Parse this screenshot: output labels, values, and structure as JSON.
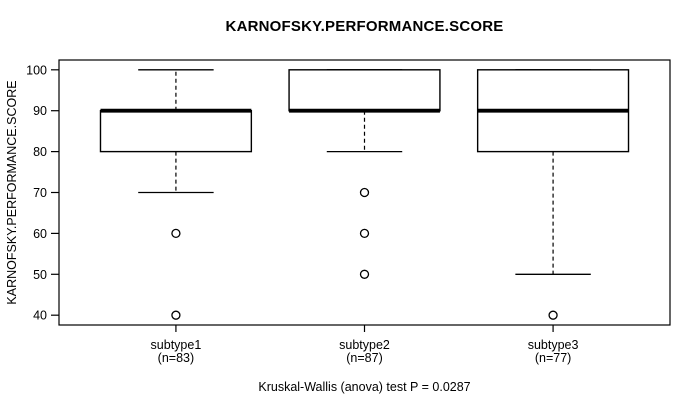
{
  "colors": {
    "foreground": "#000000",
    "background": "#ffffff"
  },
  "chart_data": {
    "type": "boxplot",
    "title": "KARNOFSKY.PERFORMANCE.SCORE",
    "ylabel": "KARNOFSKY.PERFORMANCE.SCORE",
    "xlabel": "",
    "footer": "Kruskal-Wallis (anova) test P = 0.0287",
    "ylim": [
      40,
      100
    ],
    "yticks": [
      40,
      50,
      60,
      70,
      80,
      90,
      100
    ],
    "grid": false,
    "groups": [
      {
        "label": "subtype1",
        "sublabel": "(n=83)",
        "n": 83,
        "whisker_low": 70,
        "q1": 80,
        "median": 90,
        "q3": 90,
        "whisker_high": 100,
        "outliers": [
          60,
          40
        ]
      },
      {
        "label": "subtype2",
        "sublabel": "(n=87)",
        "n": 87,
        "whisker_low": 80,
        "q1": 90,
        "median": 90,
        "q3": 100,
        "whisker_high": 100,
        "outliers": [
          70,
          60,
          50
        ]
      },
      {
        "label": "subtype3",
        "sublabel": "(n=77)",
        "n": 77,
        "whisker_low": 50,
        "q1": 80,
        "median": 90,
        "q3": 100,
        "whisker_high": 100,
        "outliers": [
          40
        ]
      }
    ]
  }
}
